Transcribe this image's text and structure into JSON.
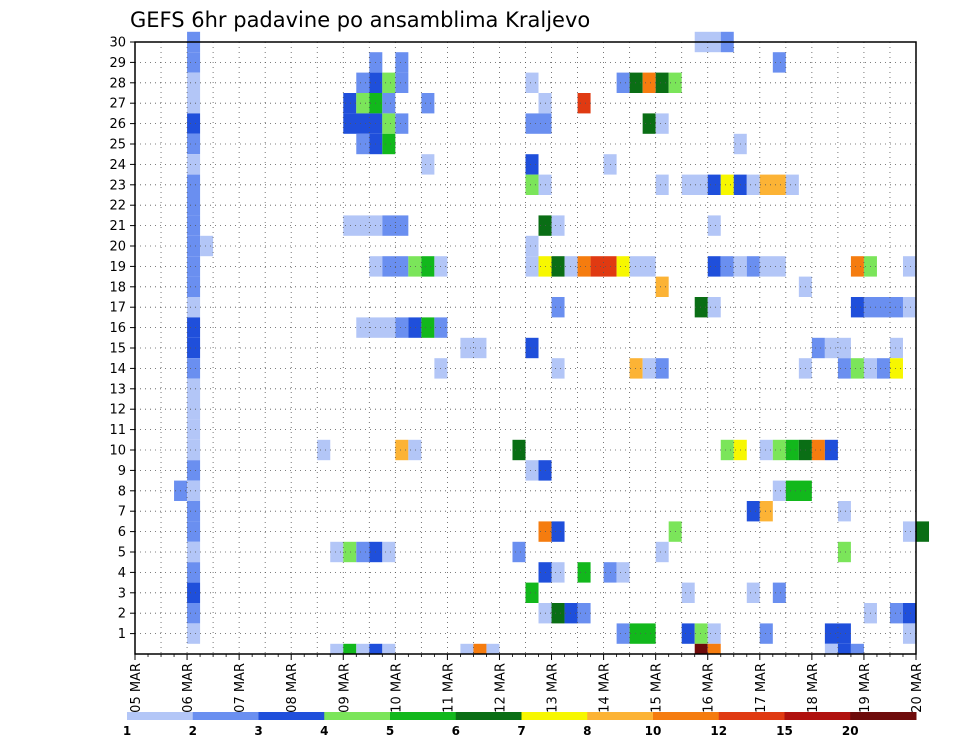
{
  "chart_data": {
    "type": "heatmap",
    "title": "GEFS 6hr padavine po ansamblima Kraljevo",
    "x_tick_labels": [
      "05 MAR",
      "06 MAR",
      "07 MAR",
      "08 MAR",
      "09 MAR",
      "10 MAR",
      "11 MAR",
      "12 MAR",
      "13 MAR",
      "14 MAR",
      "15 MAR",
      "16 MAR",
      "17 MAR",
      "18 MAR",
      "19 MAR",
      "20 MAR"
    ],
    "y_tick_labels": [
      "1",
      "2",
      "3",
      "4",
      "5",
      "6",
      "7",
      "8",
      "9",
      "10",
      "11",
      "12",
      "13",
      "14",
      "15",
      "16",
      "17",
      "18",
      "19",
      "20",
      "21",
      "22",
      "23",
      "24",
      "25",
      "26",
      "27",
      "28",
      "29",
      "30"
    ],
    "xlim_days": [
      0,
      15
    ],
    "ylim_members": [
      0,
      30
    ],
    "step_days": 0.25,
    "grid": "dotted",
    "colorbar": {
      "boundaries": [
        "1",
        "2",
        "3",
        "4",
        "5",
        "6",
        "7",
        "8",
        "10",
        "12",
        "15",
        "20"
      ],
      "colors": [
        "#b3c6f7",
        "#6a8ff0",
        "#1f4fdb",
        "#7be55a",
        "#12b81c",
        "#0a6e15",
        "#f7f700",
        "#fcb335",
        "#f57c0f",
        "#e03a12",
        "#b0110e",
        "#6e0b0b"
      ]
    },
    "cells_note": "each cell: [member, start_day_offset_from_05_MAR, end_day_offset, class_index_into_colors]",
    "cells": [
      [
        30,
        1.0,
        1.25,
        1
      ],
      [
        30,
        10.75,
        11.25,
        0
      ],
      [
        30,
        11.25,
        11.5,
        1
      ],
      [
        29,
        1.0,
        1.25,
        1
      ],
      [
        29,
        4.5,
        4.75,
        1
      ],
      [
        29,
        5.0,
        5.25,
        1
      ],
      [
        29,
        12.25,
        12.5,
        1
      ],
      [
        28,
        1.0,
        1.25,
        0
      ],
      [
        28,
        4.25,
        4.5,
        1
      ],
      [
        28,
        4.5,
        4.75,
        2
      ],
      [
        28,
        4.75,
        5.0,
        3
      ],
      [
        28,
        5.0,
        5.25,
        1
      ],
      [
        28,
        7.5,
        7.75,
        0
      ],
      [
        28,
        9.25,
        9.5,
        1
      ],
      [
        28,
        9.5,
        9.75,
        5
      ],
      [
        28,
        9.75,
        10.0,
        8
      ],
      [
        28,
        10.0,
        10.25,
        5
      ],
      [
        28,
        10.25,
        10.5,
        3
      ],
      [
        27,
        1.0,
        1.25,
        0
      ],
      [
        27,
        4.0,
        4.25,
        2
      ],
      [
        27,
        4.25,
        4.5,
        3
      ],
      [
        27,
        4.5,
        4.75,
        4
      ],
      [
        27,
        4.75,
        5.0,
        1
      ],
      [
        27,
        5.5,
        5.75,
        1
      ],
      [
        27,
        7.75,
        8.0,
        0
      ],
      [
        27,
        8.5,
        8.75,
        9
      ],
      [
        26,
        1.0,
        1.25,
        2
      ],
      [
        26,
        4.0,
        4.75,
        2
      ],
      [
        26,
        4.75,
        5.0,
        3
      ],
      [
        26,
        5.0,
        5.25,
        1
      ],
      [
        26,
        7.5,
        8.0,
        1
      ],
      [
        26,
        9.75,
        10.0,
        5
      ],
      [
        26,
        10.0,
        10.25,
        0
      ],
      [
        25,
        1.0,
        1.25,
        1
      ],
      [
        25,
        4.25,
        4.5,
        1
      ],
      [
        25,
        4.5,
        4.75,
        2
      ],
      [
        25,
        4.75,
        5.0,
        4
      ],
      [
        25,
        11.5,
        11.75,
        0
      ],
      [
        24,
        1.0,
        1.25,
        0
      ],
      [
        24,
        5.5,
        5.75,
        0
      ],
      [
        24,
        7.5,
        7.75,
        2
      ],
      [
        24,
        9.0,
        9.25,
        0
      ],
      [
        23,
        1.0,
        1.25,
        1
      ],
      [
        23,
        7.5,
        7.75,
        3
      ],
      [
        23,
        7.75,
        8.0,
        0
      ],
      [
        23,
        10.0,
        10.25,
        0
      ],
      [
        23,
        10.5,
        11.0,
        0
      ],
      [
        23,
        11.0,
        11.25,
        2
      ],
      [
        23,
        11.25,
        11.5,
        6
      ],
      [
        23,
        11.5,
        11.75,
        2
      ],
      [
        23,
        11.75,
        12.0,
        0
      ],
      [
        23,
        12.0,
        12.5,
        7
      ],
      [
        23,
        12.5,
        12.75,
        0
      ],
      [
        22,
        1.0,
        1.25,
        1
      ],
      [
        21,
        1.0,
        1.25,
        1
      ],
      [
        21,
        4.0,
        4.75,
        0
      ],
      [
        21,
        4.75,
        5.25,
        1
      ],
      [
        21,
        7.75,
        8.0,
        5
      ],
      [
        21,
        8.0,
        8.25,
        0
      ],
      [
        21,
        11.0,
        11.25,
        0
      ],
      [
        20,
        1.0,
        1.25,
        1
      ],
      [
        20,
        1.25,
        1.5,
        0
      ],
      [
        20,
        7.5,
        7.75,
        0
      ],
      [
        19,
        1.0,
        1.25,
        1
      ],
      [
        19,
        4.5,
        4.75,
        0
      ],
      [
        19,
        4.75,
        5.25,
        1
      ],
      [
        19,
        5.25,
        5.5,
        3
      ],
      [
        19,
        5.5,
        5.75,
        4
      ],
      [
        19,
        5.75,
        6.0,
        0
      ],
      [
        19,
        7.5,
        7.75,
        0
      ],
      [
        19,
        7.75,
        8.0,
        6
      ],
      [
        19,
        8.0,
        8.25,
        5
      ],
      [
        19,
        8.25,
        8.5,
        0
      ],
      [
        19,
        8.5,
        8.75,
        8
      ],
      [
        19,
        8.75,
        9.25,
        9
      ],
      [
        19,
        9.25,
        9.5,
        6
      ],
      [
        19,
        9.5,
        10.0,
        0
      ],
      [
        19,
        11.0,
        11.25,
        2
      ],
      [
        19,
        11.25,
        11.5,
        1
      ],
      [
        19,
        11.5,
        11.75,
        0
      ],
      [
        19,
        11.75,
        12.0,
        1
      ],
      [
        19,
        12.0,
        12.5,
        0
      ],
      [
        19,
        13.75,
        14.0,
        8
      ],
      [
        19,
        14.0,
        14.25,
        3
      ],
      [
        19,
        14.75,
        15.0,
        0
      ],
      [
        18,
        1.0,
        1.25,
        1
      ],
      [
        18,
        10.0,
        10.25,
        7
      ],
      [
        18,
        12.75,
        13.0,
        0
      ],
      [
        17,
        1.0,
        1.25,
        0
      ],
      [
        17,
        8.0,
        8.25,
        1
      ],
      [
        17,
        10.75,
        11.0,
        5
      ],
      [
        17,
        11.0,
        11.25,
        0
      ],
      [
        17,
        13.75,
        14.0,
        2
      ],
      [
        17,
        14.0,
        14.75,
        1
      ],
      [
        17,
        14.75,
        15.0,
        0
      ],
      [
        16,
        1.0,
        1.25,
        2
      ],
      [
        16,
        4.25,
        5.0,
        0
      ],
      [
        16,
        5.0,
        5.25,
        1
      ],
      [
        16,
        5.25,
        5.5,
        2
      ],
      [
        16,
        5.5,
        5.75,
        4
      ],
      [
        16,
        5.75,
        6.0,
        1
      ],
      [
        15,
        1.0,
        1.25,
        2
      ],
      [
        15,
        6.25,
        6.75,
        0
      ],
      [
        15,
        7.5,
        7.75,
        2
      ],
      [
        15,
        13.0,
        13.25,
        1
      ],
      [
        15,
        13.25,
        13.75,
        0
      ],
      [
        15,
        14.5,
        14.75,
        0
      ],
      [
        14,
        1.0,
        1.25,
        1
      ],
      [
        14,
        5.75,
        6.0,
        0
      ],
      [
        14,
        8.0,
        8.25,
        0
      ],
      [
        14,
        9.5,
        9.75,
        7
      ],
      [
        14,
        9.75,
        10.0,
        0
      ],
      [
        14,
        10.0,
        10.25,
        1
      ],
      [
        14,
        12.75,
        13.0,
        0
      ],
      [
        14,
        13.5,
        13.75,
        1
      ],
      [
        14,
        13.75,
        14.0,
        3
      ],
      [
        14,
        14.0,
        14.25,
        0
      ],
      [
        14,
        14.25,
        14.5,
        1
      ],
      [
        14,
        14.5,
        14.75,
        6
      ],
      [
        13,
        1.0,
        1.25,
        0
      ],
      [
        12,
        1.0,
        1.25,
        0
      ],
      [
        11,
        1.0,
        1.25,
        0
      ],
      [
        10,
        1.0,
        1.25,
        0
      ],
      [
        10,
        3.5,
        3.75,
        0
      ],
      [
        10,
        5.0,
        5.25,
        7
      ],
      [
        10,
        5.25,
        5.5,
        0
      ],
      [
        10,
        7.25,
        7.5,
        5
      ],
      [
        10,
        11.25,
        11.5,
        3
      ],
      [
        10,
        11.5,
        11.75,
        6
      ],
      [
        10,
        12.0,
        12.25,
        0
      ],
      [
        10,
        12.25,
        12.5,
        3
      ],
      [
        10,
        12.5,
        12.75,
        4
      ],
      [
        10,
        12.75,
        13.0,
        5
      ],
      [
        10,
        13.0,
        13.25,
        8
      ],
      [
        10,
        13.25,
        13.5,
        2
      ],
      [
        9,
        1.0,
        1.25,
        1
      ],
      [
        9,
        7.5,
        7.75,
        0
      ],
      [
        9,
        7.75,
        8.0,
        2
      ],
      [
        8,
        0.75,
        1.0,
        1
      ],
      [
        8,
        1.0,
        1.25,
        0
      ],
      [
        8,
        12.25,
        12.5,
        0
      ],
      [
        8,
        12.5,
        13.0,
        4
      ],
      [
        7,
        1.0,
        1.25,
        1
      ],
      [
        7,
        11.75,
        12.0,
        2
      ],
      [
        7,
        12.0,
        12.25,
        7
      ],
      [
        7,
        13.5,
        13.75,
        0
      ],
      [
        6,
        1.0,
        1.25,
        1
      ],
      [
        6,
        7.75,
        8.0,
        8
      ],
      [
        6,
        8.0,
        8.25,
        2
      ],
      [
        6,
        10.25,
        10.5,
        3
      ],
      [
        6,
        14.75,
        15.0,
        0
      ],
      [
        6,
        15.0,
        15.25,
        5
      ],
      [
        5,
        1.0,
        1.25,
        0
      ],
      [
        5,
        3.75,
        4.0,
        0
      ],
      [
        5,
        4.0,
        4.25,
        3
      ],
      [
        5,
        4.25,
        4.5,
        1
      ],
      [
        5,
        4.5,
        4.75,
        2
      ],
      [
        5,
        4.75,
        5.0,
        0
      ],
      [
        5,
        7.25,
        7.5,
        1
      ],
      [
        5,
        10.0,
        10.25,
        0
      ],
      [
        5,
        13.5,
        13.75,
        3
      ],
      [
        4,
        1.0,
        1.25,
        1
      ],
      [
        4,
        7.75,
        8.0,
        2
      ],
      [
        4,
        8.0,
        8.25,
        0
      ],
      [
        4,
        8.5,
        8.75,
        4
      ],
      [
        4,
        9.0,
        9.25,
        1
      ],
      [
        4,
        9.25,
        9.5,
        0
      ],
      [
        3,
        1.0,
        1.25,
        2
      ],
      [
        3,
        7.5,
        7.75,
        4
      ],
      [
        3,
        10.5,
        10.75,
        0
      ],
      [
        3,
        11.75,
        12.0,
        0
      ],
      [
        3,
        12.25,
        12.5,
        1
      ],
      [
        2,
        1.0,
        1.25,
        1
      ],
      [
        2,
        7.75,
        8.0,
        0
      ],
      [
        2,
        8.0,
        8.25,
        5
      ],
      [
        2,
        8.25,
        8.5,
        2
      ],
      [
        2,
        8.5,
        8.75,
        1
      ],
      [
        2,
        14.0,
        14.25,
        0
      ],
      [
        2,
        14.5,
        14.75,
        1
      ],
      [
        2,
        14.75,
        15.0,
        2
      ],
      [
        1,
        1.0,
        1.25,
        0
      ],
      [
        1,
        9.25,
        9.5,
        1
      ],
      [
        1,
        9.5,
        10.0,
        4
      ],
      [
        1,
        10.5,
        10.75,
        2
      ],
      [
        1,
        10.75,
        11.0,
        3
      ],
      [
        1,
        11.0,
        11.25,
        0
      ],
      [
        1,
        12.0,
        12.25,
        1
      ],
      [
        1,
        13.25,
        13.75,
        2
      ],
      [
        1,
        14.75,
        15.0,
        0
      ],
      [
        0,
        3.75,
        4.0,
        0
      ],
      [
        0,
        4.0,
        4.25,
        4
      ],
      [
        0,
        4.25,
        4.5,
        0
      ],
      [
        0,
        4.5,
        4.75,
        2
      ],
      [
        0,
        4.75,
        5.0,
        0
      ],
      [
        0,
        6.25,
        6.5,
        0
      ],
      [
        0,
        6.5,
        6.75,
        8
      ],
      [
        0,
        6.75,
        7.0,
        0
      ],
      [
        0,
        10.75,
        11.0,
        11
      ],
      [
        0,
        11.0,
        11.25,
        8
      ],
      [
        0,
        13.25,
        13.5,
        0
      ],
      [
        0,
        13.5,
        13.75,
        2
      ],
      [
        0,
        13.75,
        14.0,
        1
      ]
    ]
  }
}
